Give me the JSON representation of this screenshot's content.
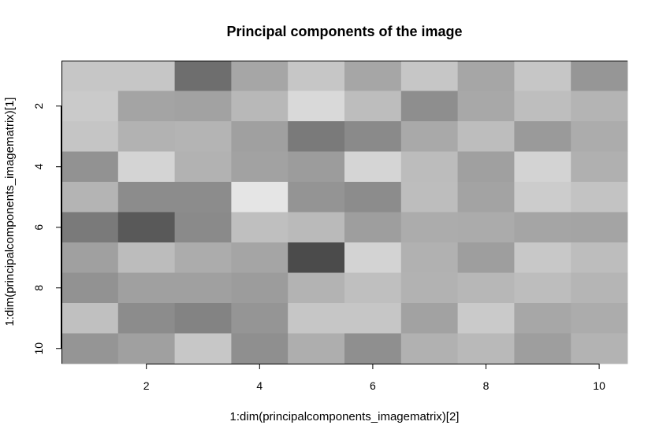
{
  "chart_data": {
    "type": "heatmap",
    "title": "Principal components of the image",
    "xlabel": "1:dim(principalcomponents_imagematrix)[2]",
    "ylabel": "1:dim(principalcomponents_imagematrix)[1]",
    "x": [
      1,
      2,
      3,
      4,
      5,
      6,
      7,
      8,
      9,
      10
    ],
    "y": [
      1,
      2,
      3,
      4,
      5,
      6,
      7,
      8,
      9,
      10
    ],
    "xlim": [
      0.5,
      10.5
    ],
    "ylim": [
      10.5,
      0.5
    ],
    "x_ticks": [
      2,
      4,
      6,
      8,
      10
    ],
    "y_ticks": [
      2,
      4,
      6,
      8,
      10
    ],
    "color_scale": "grayscale",
    "rows": [
      [
        "#c6c6c6",
        "#c6c6c6",
        "#6e6e6e",
        "#a6a6a6",
        "#c6c6c6",
        "#a6a6a6",
        "#c6c6c6",
        "#a6a6a6",
        "#c6c6c6",
        "#969696"
      ],
      [
        "#cacaca",
        "#a4a4a4",
        "#a2a2a2",
        "#b8b8b8",
        "#d9d9d9",
        "#bdbdbd",
        "#8e8e8e",
        "#a8a8a8",
        "#bebebe",
        "#b4b4b4"
      ],
      [
        "#c5c5c5",
        "#b2b2b2",
        "#b4b4b4",
        "#a0a0a0",
        "#7a7a7a",
        "#8a8a8a",
        "#a9a9a9",
        "#bdbdbd",
        "#9a9a9a",
        "#acacac"
      ],
      [
        "#929292",
        "#d4d4d4",
        "#b2b2b2",
        "#a2a2a2",
        "#9c9c9c",
        "#d5d5d5",
        "#bcbcbc",
        "#a0a0a0",
        "#d3d3d3",
        "#b0b0b0"
      ],
      [
        "#b4b4b4",
        "#8c8c8c",
        "#8c8c8c",
        "#e5e5e5",
        "#949494",
        "#8c8c8c",
        "#bdbdbd",
        "#a3a3a3",
        "#cccccc",
        "#c3c3c3"
      ],
      [
        "#7a7a7a",
        "#595959",
        "#8a8a8a",
        "#bfbfbf",
        "#bababa",
        "#9e9e9e",
        "#acacac",
        "#ababab",
        "#a5a5a5",
        "#a4a4a4"
      ],
      [
        "#a0a0a0",
        "#bcbcbc",
        "#acacac",
        "#a5a5a5",
        "#4b4b4b",
        "#d3d3d3",
        "#b1b1b1",
        "#9e9e9e",
        "#c8c8c8",
        "#bdbdbd"
      ],
      [
        "#929292",
        "#a0a0a0",
        "#a0a0a0",
        "#9c9c9c",
        "#b3b3b3",
        "#bfbfbf",
        "#b2b2b2",
        "#b7b7b7",
        "#bdbdbd",
        "#b5b5b5"
      ],
      [
        "#c0c0c0",
        "#8c8c8c",
        "#838383",
        "#959595",
        "#c6c6c6",
        "#c6c6c6",
        "#a2a2a2",
        "#cacaca",
        "#a7a7a7",
        "#acacac"
      ],
      [
        "#959595",
        "#a0a0a0",
        "#c7c7c7",
        "#8f8f8f",
        "#aeaeae",
        "#8f8f8f",
        "#b1b1b1",
        "#b9b9b9",
        "#9e9e9e",
        "#b3b3b3"
      ]
    ]
  }
}
